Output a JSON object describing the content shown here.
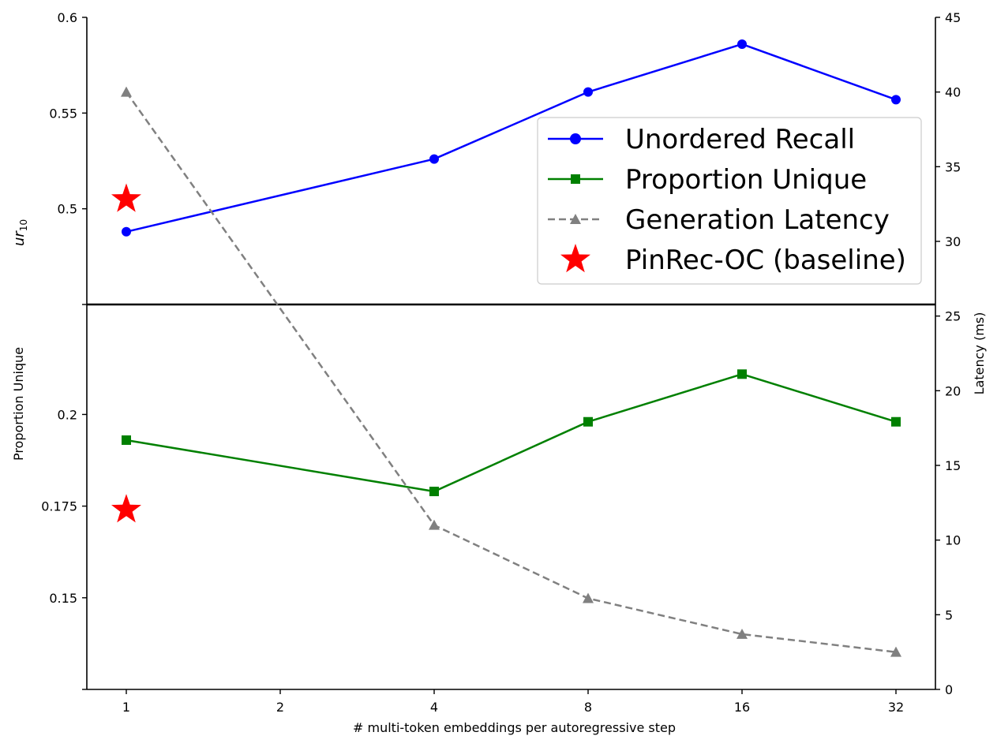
{
  "chart_data": {
    "type": "line",
    "xlabel": "# multi-token embeddings per autoregressive step",
    "categories": [
      "1",
      "2",
      "4",
      "8",
      "16",
      "32"
    ],
    "top_panel": {
      "ylabel_base": "ur",
      "ylabel_sub": "10",
      "ylim": [
        0.45,
        0.6
      ],
      "yticks": [
        "0.5",
        "0.55",
        "0.6"
      ]
    },
    "bottom_panel": {
      "ylabel": "Proportion Unique",
      "ylim": [
        0.125,
        0.23
      ],
      "yticks": [
        "0.15",
        "0.175",
        "0.2"
      ]
    },
    "right_axis": {
      "ylabel": "Latency (ms)",
      "ylim": [
        0,
        45
      ],
      "yticks": [
        "0",
        "5",
        "10",
        "15",
        "20",
        "25",
        "30",
        "35",
        "40",
        "45"
      ]
    },
    "series": [
      {
        "name": "Unordered Recall",
        "axis": "top",
        "color": "#0000ff",
        "marker": "circle",
        "style": "solid",
        "x": [
          "1",
          "4",
          "8",
          "16",
          "32"
        ],
        "values": [
          0.488,
          0.526,
          0.561,
          0.586,
          0.557
        ]
      },
      {
        "name": "Proportion Unique",
        "axis": "bottom",
        "color": "#008000",
        "marker": "square",
        "style": "solid",
        "x": [
          "1",
          "4",
          "8",
          "16",
          "32"
        ],
        "values": [
          0.193,
          0.179,
          0.198,
          0.211,
          0.198
        ]
      },
      {
        "name": "Generation Latency",
        "axis": "right",
        "color": "#808080",
        "marker": "triangle",
        "style": "dashed",
        "x": [
          "1",
          "4",
          "8",
          "16",
          "32"
        ],
        "values": [
          40.0,
          11.0,
          6.1,
          3.7,
          2.5
        ]
      },
      {
        "name": "PinRec-OC (baseline)",
        "axis": "top+bottom",
        "color": "#ff0000",
        "marker": "star",
        "style": "none",
        "x": [
          "1",
          "1"
        ],
        "values": [
          0.505,
          0.174
        ]
      }
    ],
    "legend_position": "upper right of top panel"
  }
}
